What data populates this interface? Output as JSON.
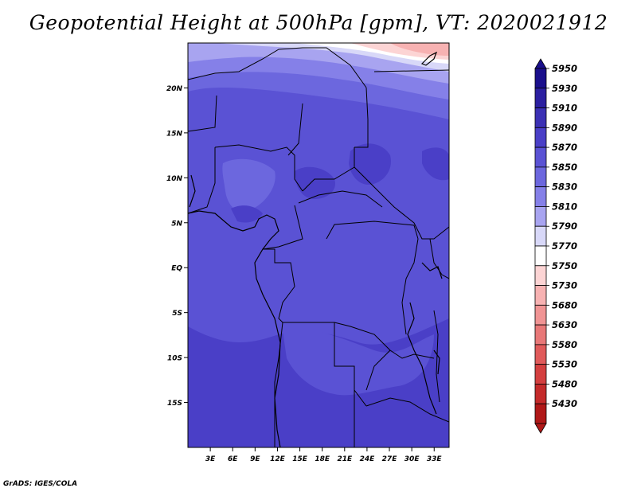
{
  "title": "Geopotential Height at 500hPa [gpm], VT: 2020021912",
  "credit": "GrADS: IGES/COLA",
  "map": {
    "lat_labels": [
      "20N",
      "15N",
      "10N",
      "5N",
      "EQ",
      "5S",
      "10S",
      "15S"
    ],
    "lat_values": [
      20,
      15,
      10,
      5,
      0,
      -5,
      -10,
      -15
    ],
    "lon_labels": [
      "3E",
      "6E",
      "9E",
      "12E",
      "15E",
      "18E",
      "21E",
      "24E",
      "27E",
      "30E",
      "33E"
    ],
    "lon_values": [
      3,
      6,
      9,
      12,
      15,
      18,
      21,
      24,
      27,
      30,
      33
    ],
    "lon_range": [
      0,
      35
    ],
    "lat_range": [
      -20,
      25
    ]
  },
  "legend": {
    "levels": [
      {
        "label": "5950",
        "color": "#1a0f8c"
      },
      {
        "label": "5930",
        "color": "#2b1fa0"
      },
      {
        "label": "5910",
        "color": "#3b30b4"
      },
      {
        "label": "5890",
        "color": "#4a3fc7"
      },
      {
        "label": "5870",
        "color": "#5a52d4"
      },
      {
        "label": "5850",
        "color": "#6c67de"
      },
      {
        "label": "5830",
        "color": "#8580e8"
      },
      {
        "label": "5810",
        "color": "#a8a4f0"
      },
      {
        "label": "5790",
        "color": "#d8d8f8"
      },
      {
        "label": "5770",
        "color": "#ffffff"
      },
      {
        "label": "5750",
        "color": "#fcd4d4"
      },
      {
        "label": "5730",
        "color": "#f7b2b2"
      },
      {
        "label": "5680",
        "color": "#f09494"
      },
      {
        "label": "5630",
        "color": "#e87878"
      },
      {
        "label": "5580",
        "color": "#e05a5a"
      },
      {
        "label": "5530",
        "color": "#d43f3f"
      },
      {
        "label": "5480",
        "color": "#c42a2a"
      },
      {
        "label": "5430",
        "color": "#b01818"
      }
    ]
  }
}
